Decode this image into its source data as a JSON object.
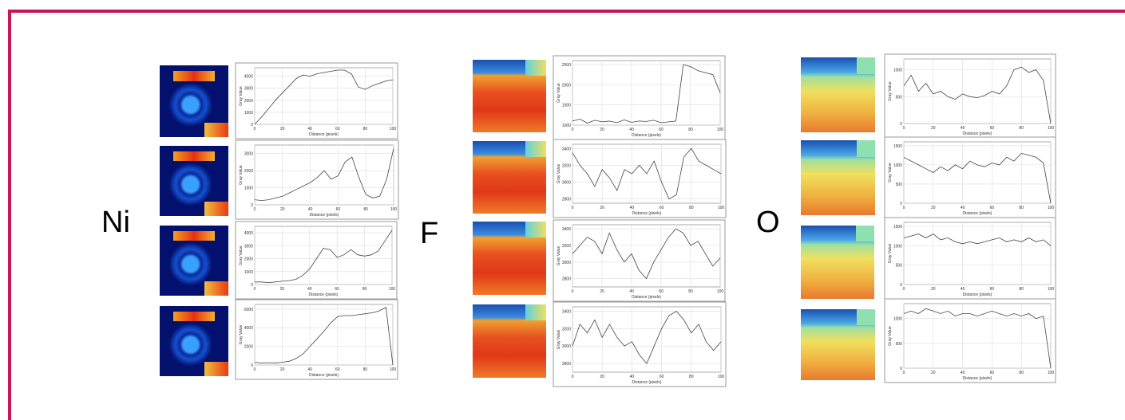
{
  "panel_labels": [
    "Ni",
    "F",
    "O"
  ],
  "chart_data": [
    {
      "type": "line",
      "xlabel": "Distance (pixels)",
      "ylabel": "Gray Value",
      "x": [
        0,
        5,
        10,
        15,
        20,
        25,
        30,
        35,
        40,
        45,
        50,
        55,
        60,
        65,
        70,
        75,
        80,
        85,
        90,
        95,
        100
      ],
      "values": [
        0,
        600,
        1300,
        2000,
        2600,
        3200,
        3800,
        4100,
        4000,
        4200,
        4300,
        4400,
        4500,
        4500,
        4200,
        3100,
        2900,
        3200,
        3400,
        3600,
        3700
      ],
      "color": "#444",
      "xlim": [
        0,
        100
      ],
      "xticks": [
        0,
        20,
        40,
        60,
        80,
        100
      ],
      "ylim": [
        0,
        4700
      ],
      "yticks": [
        0,
        1000,
        2000,
        3000,
        4000
      ],
      "grid": true
    },
    {
      "type": "line",
      "xlabel": "Distance (pixels)",
      "ylabel": "Gray Value",
      "x": [
        0,
        5,
        10,
        15,
        20,
        25,
        30,
        35,
        40,
        45,
        50,
        55,
        60,
        65,
        70,
        75,
        80,
        85,
        90,
        95,
        100
      ],
      "values": [
        300,
        250,
        300,
        400,
        500,
        700,
        900,
        1100,
        1300,
        1600,
        2000,
        1500,
        1700,
        2500,
        2800,
        1600,
        600,
        400,
        500,
        1500,
        3300
      ],
      "color": "#444",
      "xlim": [
        0,
        100
      ],
      "xticks": [
        0,
        20,
        40,
        60,
        80,
        100
      ],
      "ylim": [
        0,
        3500
      ],
      "yticks": [
        0,
        1000,
        2000,
        3000
      ],
      "grid": true
    },
    {
      "type": "line",
      "xlabel": "Distance (pixels)",
      "ylabel": "Gray Value",
      "x": [
        0,
        5,
        10,
        15,
        20,
        25,
        30,
        35,
        40,
        45,
        50,
        55,
        60,
        65,
        70,
        75,
        80,
        85,
        90,
        95,
        100
      ],
      "values": [
        200,
        200,
        150,
        200,
        250,
        300,
        400,
        700,
        1200,
        2000,
        2800,
        2700,
        2100,
        2300,
        2700,
        2300,
        2200,
        2300,
        2600,
        3400,
        4200
      ],
      "color": "#444",
      "xlim": [
        0,
        100
      ],
      "xticks": [
        0,
        20,
        40,
        60,
        80,
        100
      ],
      "ylim": [
        0,
        4500
      ],
      "yticks": [
        0,
        1000,
        2000,
        3000,
        4000
      ],
      "grid": true
    },
    {
      "type": "line",
      "xlabel": "Distance (pixels)",
      "ylabel": "Gray Value",
      "x": [
        0,
        5,
        10,
        15,
        20,
        25,
        30,
        35,
        40,
        45,
        50,
        55,
        60,
        65,
        70,
        75,
        80,
        85,
        90,
        95,
        100
      ],
      "values": [
        300,
        200,
        250,
        200,
        300,
        400,
        700,
        1200,
        2000,
        2800,
        3600,
        4500,
        5200,
        5300,
        5300,
        5400,
        5500,
        5600,
        5800,
        6200,
        0
      ],
      "color": "#444",
      "xlim": [
        0,
        100
      ],
      "xticks": [
        0,
        20,
        40,
        60,
        80,
        100
      ],
      "ylim": [
        0,
        6500
      ],
      "yticks": [
        0,
        2000,
        4000,
        6000
      ],
      "grid": true
    },
    {
      "type": "line",
      "xlabel": "Distance (pixels)",
      "ylabel": "Gray Value",
      "x": [
        0,
        5,
        10,
        15,
        20,
        25,
        30,
        35,
        40,
        45,
        50,
        55,
        60,
        65,
        70,
        75,
        80,
        85,
        90,
        95,
        100
      ],
      "values": [
        1100,
        1150,
        1050,
        1120,
        1080,
        1100,
        1060,
        1130,
        1070,
        1100,
        1090,
        1120,
        1060,
        1080,
        1100,
        2500,
        2450,
        2350,
        2300,
        2250,
        1800
      ],
      "color": "#444",
      "xlim": [
        0,
        100
      ],
      "xticks": [
        0,
        20,
        40,
        60,
        80,
        100
      ],
      "ylim": [
        1000,
        2600
      ],
      "yticks": [
        1000,
        1500,
        2000,
        2500
      ],
      "grid": true
    },
    {
      "type": "line",
      "xlabel": "Distance (pixels)",
      "ylabel": "Gray Value",
      "x": [
        0,
        5,
        10,
        15,
        20,
        25,
        30,
        35,
        40,
        45,
        50,
        55,
        60,
        65,
        70,
        75,
        80,
        85,
        90,
        95,
        100
      ],
      "values": [
        3350,
        3200,
        3100,
        2950,
        3150,
        3050,
        2900,
        3150,
        3100,
        3200,
        3100,
        3250,
        3000,
        2800,
        2850,
        3300,
        3400,
        3250,
        3200,
        3150,
        3100
      ],
      "color": "#444",
      "xlim": [
        0,
        100
      ],
      "xticks": [
        0,
        20,
        40,
        60,
        80,
        100
      ],
      "ylim": [
        2750,
        3450
      ],
      "yticks": [
        2800,
        3000,
        3200,
        3400
      ],
      "grid": true
    },
    {
      "type": "line",
      "xlabel": "Distance (pixels)",
      "ylabel": "Gray Value",
      "x": [
        0,
        5,
        10,
        15,
        20,
        25,
        30,
        35,
        40,
        45,
        50,
        55,
        60,
        65,
        70,
        75,
        80,
        85,
        90,
        95,
        100
      ],
      "values": [
        3100,
        3200,
        3300,
        3250,
        3100,
        3350,
        3150,
        3000,
        3100,
        2900,
        2800,
        3000,
        3150,
        3300,
        3400,
        3350,
        3200,
        3250,
        3100,
        2950,
        3050
      ],
      "color": "#444",
      "xlim": [
        0,
        100
      ],
      "xticks": [
        0,
        20,
        40,
        60,
        80,
        100
      ],
      "ylim": [
        2700,
        3450
      ],
      "yticks": [
        2800,
        3000,
        3200,
        3400
      ],
      "grid": true
    },
    {
      "type": "line",
      "xlabel": "Distance (pixels)",
      "ylabel": "Gray Value",
      "x": [
        0,
        5,
        10,
        15,
        20,
        25,
        30,
        35,
        40,
        45,
        50,
        55,
        60,
        65,
        70,
        75,
        80,
        85,
        90,
        95,
        100
      ],
      "values": [
        3000,
        3250,
        3150,
        3300,
        3100,
        3250,
        3100,
        3000,
        3050,
        2900,
        2800,
        3000,
        3200,
        3350,
        3400,
        3300,
        3150,
        3250,
        3050,
        2950,
        3050
      ],
      "color": "#444",
      "xlim": [
        0,
        100
      ],
      "xticks": [
        0,
        20,
        40,
        60,
        80,
        100
      ],
      "ylim": [
        2700,
        3450
      ],
      "yticks": [
        2800,
        3000,
        3200,
        3400
      ],
      "grid": true
    },
    {
      "type": "line",
      "xlabel": "Distance (pixels)",
      "ylabel": "Gray Value",
      "x": [
        0,
        5,
        10,
        15,
        20,
        25,
        30,
        35,
        40,
        45,
        50,
        55,
        60,
        65,
        70,
        75,
        80,
        85,
        90,
        95,
        100
      ],
      "values": [
        700,
        900,
        600,
        750,
        550,
        600,
        500,
        450,
        550,
        500,
        480,
        520,
        600,
        550,
        700,
        1000,
        1050,
        950,
        1000,
        800,
        0
      ],
      "color": "#444",
      "xlim": [
        0,
        100
      ],
      "xticks": [
        0,
        20,
        40,
        60,
        80,
        100
      ],
      "ylim": [
        0,
        1200
      ],
      "yticks": [
        0,
        500,
        1000
      ],
      "grid": true
    },
    {
      "type": "line",
      "xlabel": "Distance (pixels)",
      "ylabel": "Gray Value",
      "x": [
        0,
        5,
        10,
        15,
        20,
        25,
        30,
        35,
        40,
        45,
        50,
        55,
        60,
        65,
        70,
        75,
        80,
        85,
        90,
        95,
        100
      ],
      "values": [
        1200,
        1100,
        1000,
        900,
        800,
        950,
        850,
        1000,
        900,
        1100,
        1000,
        950,
        1050,
        1000,
        1200,
        1100,
        1300,
        1250,
        1200,
        1050,
        0
      ],
      "color": "#444",
      "xlim": [
        0,
        100
      ],
      "xticks": [
        0,
        20,
        40,
        60,
        80,
        100
      ],
      "ylim": [
        0,
        1600
      ],
      "yticks": [
        0,
        500,
        1000,
        1500
      ],
      "grid": true
    },
    {
      "type": "line",
      "xlabel": "Distance (pixels)",
      "ylabel": "Gray Value",
      "x": [
        0,
        5,
        10,
        15,
        20,
        25,
        30,
        35,
        40,
        45,
        50,
        55,
        60,
        65,
        70,
        75,
        80,
        85,
        90,
        95,
        100
      ],
      "values": [
        1200,
        1250,
        1300,
        1200,
        1300,
        1150,
        1200,
        1100,
        1050,
        1100,
        1050,
        1100,
        1150,
        1200,
        1100,
        1150,
        1100,
        1200,
        1100,
        1150,
        1000
      ],
      "color": "#444",
      "xlim": [
        0,
        100
      ],
      "xticks": [
        0,
        20,
        40,
        60,
        80,
        100
      ],
      "ylim": [
        0,
        1600
      ],
      "yticks": [
        0,
        500,
        1000,
        1500
      ],
      "grid": true
    },
    {
      "type": "line",
      "xlabel": "Distance (pixels)",
      "ylabel": "Gray Value",
      "x": [
        0,
        5,
        10,
        15,
        20,
        25,
        30,
        35,
        40,
        45,
        50,
        55,
        60,
        65,
        70,
        75,
        80,
        85,
        90,
        95,
        100
      ],
      "values": [
        1100,
        1150,
        1100,
        1200,
        1150,
        1100,
        1150,
        1050,
        1100,
        1100,
        1050,
        1100,
        1150,
        1100,
        1050,
        1100,
        1050,
        1100,
        1000,
        1050,
        0
      ],
      "color": "#444",
      "xlim": [
        0,
        100
      ],
      "xticks": [
        0,
        20,
        40,
        60,
        80,
        100
      ],
      "ylim": [
        0,
        1300
      ],
      "yticks": [
        0,
        500,
        1000
      ],
      "grid": true
    }
  ]
}
